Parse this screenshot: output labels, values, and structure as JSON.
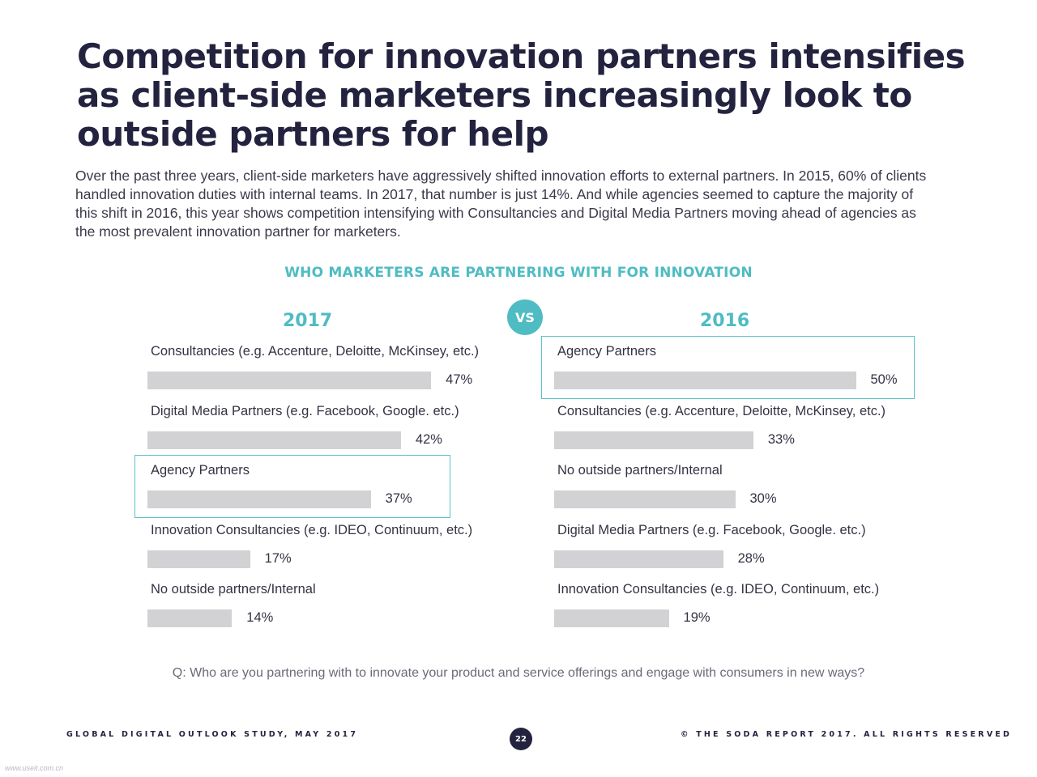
{
  "headline": {
    "line1": "Competition for innovation partners intensifies",
    "line2": "as client-side marketers increasingly look to",
    "line3": "outside partners for help"
  },
  "intro": {
    "line1": "Over the past three years, client-side marketers have aggressively shifted innovation efforts to external partners. In 2015, 60% of clients",
    "line2": "handled innovation duties with internal teams. In 2017, that number is just 14%. And while agencies seemed to capture the majority of",
    "line3": "this shift in 2016, this year shows competition intensifying with Consultancies and Digital Media Partners moving ahead of agencies as",
    "line4": "the most prevalent innovation partner for marketers."
  },
  "vs_label": "VS",
  "question": "Q: Who are you partnering with to innovate your product and service offerings and engage with consumers in new ways?",
  "footer": {
    "left": "GLOBAL DIGITAL OUTLOOK STUDY, MAY 2017",
    "right": "© THE SODA REPORT 2017. ALL RIGHTS RESERVED",
    "page": "22"
  },
  "watermark": "www.useit.com.cn",
  "colors": {
    "accent": "#4fbcc3",
    "bar": "#d2d2d4",
    "title": "#23233f"
  },
  "chart_data": [
    {
      "type": "bar",
      "orientation": "horizontal",
      "shared_title": "WHO MARKETERS ARE PARTNERING WITH FOR INNOVATION",
      "title": "2017",
      "unit": "%",
      "xlim": [
        0,
        50
      ],
      "highlight": "Agency Partners",
      "categories": [
        "Consultancies (e.g. Accenture, Deloitte, McKinsey, etc.)",
        "Digital Media Partners (e.g. Facebook, Google. etc.)",
        "Agency Partners",
        "Innovation Consultancies (e.g. IDEO, Continuum, etc.)",
        "No outside partners/Internal"
      ],
      "values": [
        47,
        42,
        37,
        17,
        14
      ]
    },
    {
      "type": "bar",
      "orientation": "horizontal",
      "title": "2016",
      "unit": "%",
      "xlim": [
        0,
        50
      ],
      "highlight": "Agency Partners",
      "categories": [
        "Agency Partners",
        "Consultancies (e.g. Accenture, Deloitte, McKinsey, etc.)",
        "No outside partners/Internal",
        "Digital Media Partners (e.g. Facebook, Google. etc.)",
        "Innovation Consultancies (e.g. IDEO, Continuum, etc.)"
      ],
      "values": [
        50,
        33,
        30,
        28,
        19
      ]
    }
  ]
}
